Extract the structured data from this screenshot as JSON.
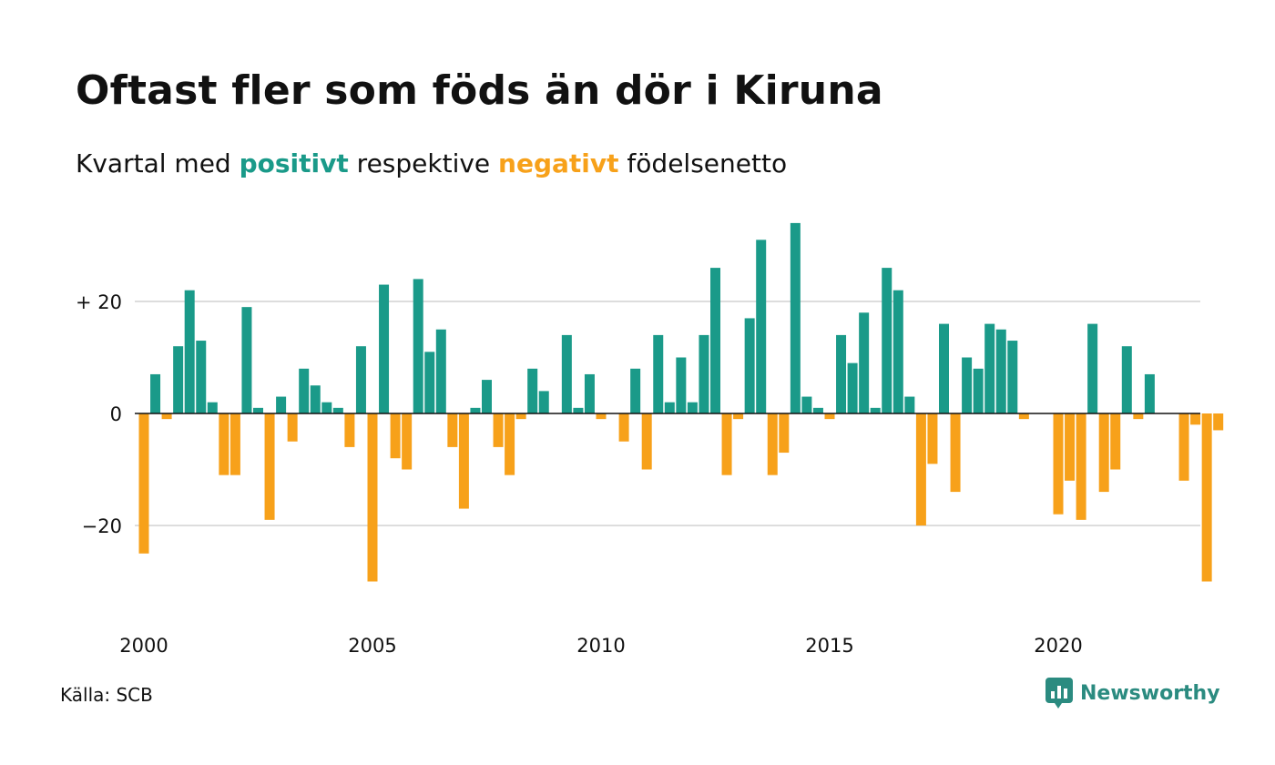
{
  "title": "Oftast fler som föds än dör i Kiruna",
  "subtitle": {
    "prefix": "Kvartal med ",
    "positive_word": "positivt",
    "middle": " respektive ",
    "negative_word": "negativt",
    "suffix": " födelsenetto"
  },
  "source": "Källa: SCB",
  "brand": {
    "name": "Newsworthy",
    "icon": "newsworthy-logo-icon"
  },
  "colors": {
    "positive": "#1a9a89",
    "negative": "#f7a11a",
    "grid": "#dddddd",
    "zero_line": "#111111",
    "brand": "#2b8b80"
  },
  "chart_data": {
    "type": "bar",
    "quarter_start_year": 2000,
    "values": [
      -25,
      7,
      -1,
      12,
      22,
      13,
      2,
      -11,
      -11,
      19,
      1,
      -19,
      3,
      -5,
      8,
      5,
      2,
      1,
      -6,
      12,
      -30,
      23,
      -8,
      -10,
      24,
      11,
      15,
      -6,
      -17,
      1,
      6,
      -6,
      -11,
      -1,
      8,
      4,
      0,
      14,
      1,
      7,
      -1,
      0,
      -5,
      8,
      -10,
      14,
      2,
      10,
      2,
      14,
      26,
      -11,
      -1,
      17,
      31,
      -11,
      -7,
      34,
      3,
      1,
      -1,
      14,
      9,
      18,
      1,
      26,
      22,
      3,
      -20,
      -9,
      16,
      -14,
      10,
      8,
      16,
      15,
      13,
      -1,
      0,
      0,
      -18,
      -12,
      -19,
      16,
      -14,
      -10,
      12,
      -1,
      7,
      0,
      0,
      -12,
      -2,
      -30,
      -3
    ],
    "x_ticks": [
      "2000",
      "2005",
      "2010",
      "2015",
      "2020"
    ],
    "x_tick_years": [
      2000,
      2005,
      2010,
      2015,
      2020
    ],
    "y_ticks": [
      {
        "value": 20,
        "label": "+ 20"
      },
      {
        "value": 0,
        "label": "0"
      },
      {
        "value": -20,
        "label": "−20"
      }
    ],
    "ylim": [
      -36,
      36
    ],
    "grid": true
  }
}
